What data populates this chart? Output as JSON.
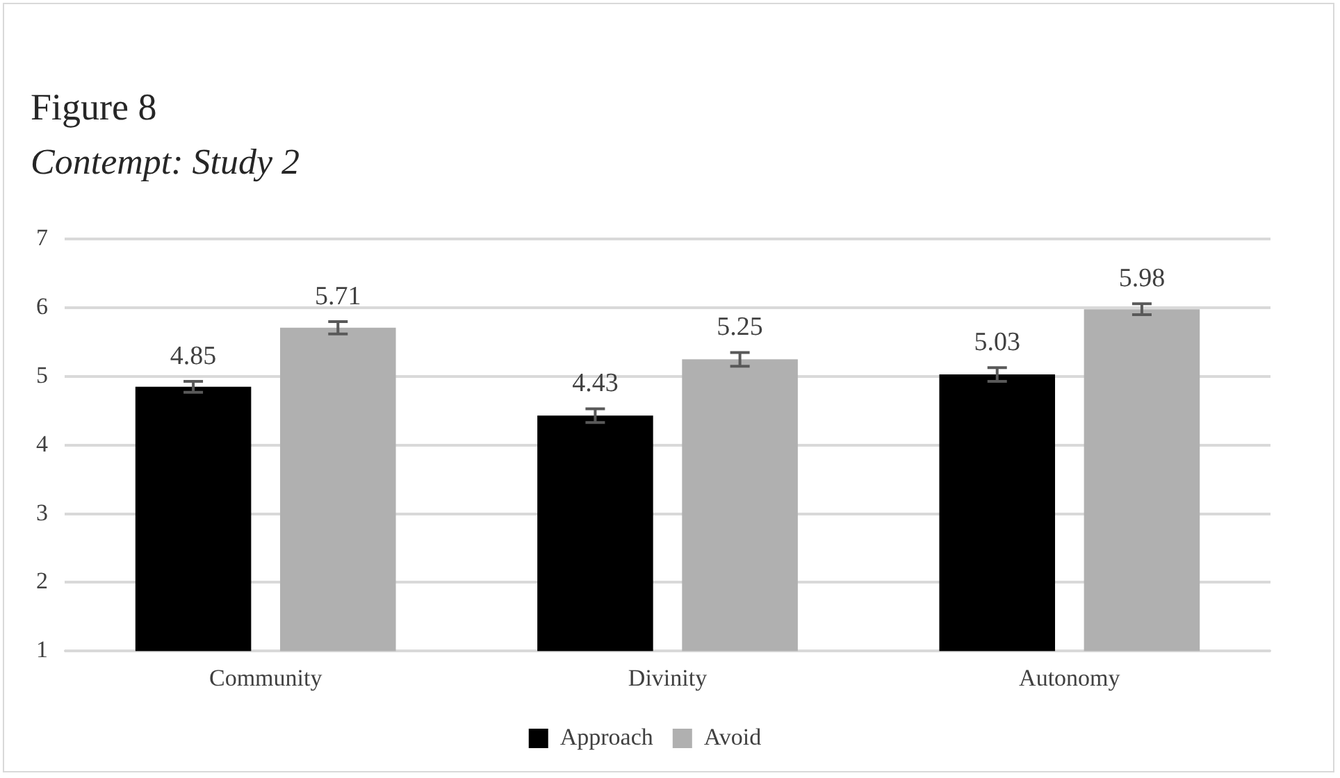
{
  "chart_data": {
    "type": "bar",
    "title": "Figure 8",
    "subtitle": "Contempt: Study 2",
    "categories": [
      "Community",
      "Divinity",
      "Autonomy"
    ],
    "series": [
      {
        "name": "Approach",
        "color": "#000000",
        "values": [
          4.85,
          4.43,
          5.03
        ],
        "errors": [
          0.08,
          0.1,
          0.1
        ]
      },
      {
        "name": "Avoid",
        "color": "#b0b0b0",
        "values": [
          5.71,
          5.25,
          5.98
        ],
        "errors": [
          0.09,
          0.1,
          0.08
        ]
      }
    ],
    "ylim": [
      1,
      7
    ],
    "yticks": [
      1,
      2,
      3,
      4,
      5,
      6,
      7
    ],
    "grid": "y",
    "legend": "bottom",
    "data_labels": true
  }
}
